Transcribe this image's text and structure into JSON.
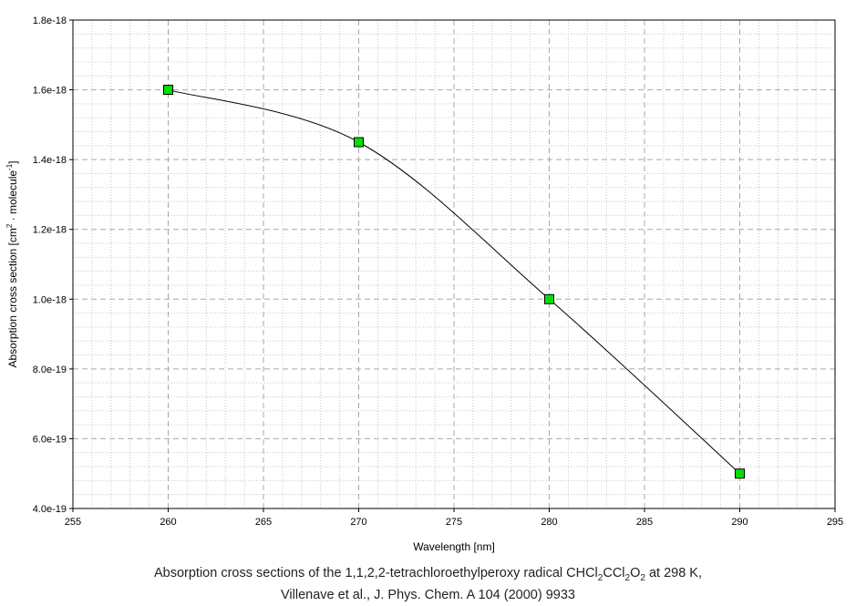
{
  "chart_data": {
    "type": "line",
    "x": [
      260,
      270,
      280,
      290
    ],
    "series": [
      {
        "values": [
          1.6e-18,
          1.45e-18,
          1e-18,
          5e-19
        ]
      }
    ],
    "xlabel": "Wavelength [nm]",
    "ylabel_main": "Absorption cross section [cm",
    "ylabel_sup1": "2",
    "ylabel_mid": " · molecule",
    "ylabel_sup2": "-1",
    "ylabel_end": "]",
    "xlim": [
      255,
      295
    ],
    "ylim": [
      4e-19,
      1.8e-18
    ],
    "xticks": [
      "255",
      "260",
      "265",
      "270",
      "275",
      "280",
      "285",
      "290",
      "295"
    ],
    "yticks": [
      "4.0e-19",
      "6.0e-19",
      "8.0e-19",
      "1.0e-18",
      "1.2e-18",
      "1.4e-18",
      "1.6e-18",
      "1.8e-18"
    ],
    "ytick_values": [
      4e-19,
      6e-19,
      8e-19,
      1e-18,
      1.2e-18,
      1.4e-18,
      1.6e-18,
      1.8e-18
    ],
    "grid": true,
    "marker": "square",
    "marker_color": "#00e000",
    "line_color": "#000000"
  },
  "caption": {
    "line1_pre": "Absorption cross sections of the 1,1,2,2-tetrachloroethylperoxy radical CHCl",
    "sub1": "2",
    "line1_mid1": "CCl",
    "sub2": "2",
    "line1_mid2": "O",
    "sub3": "2",
    "line1_post": " at 298 K,",
    "line2": "Villenave et al., J. Phys. Chem. A 104 (2000) 9933"
  }
}
